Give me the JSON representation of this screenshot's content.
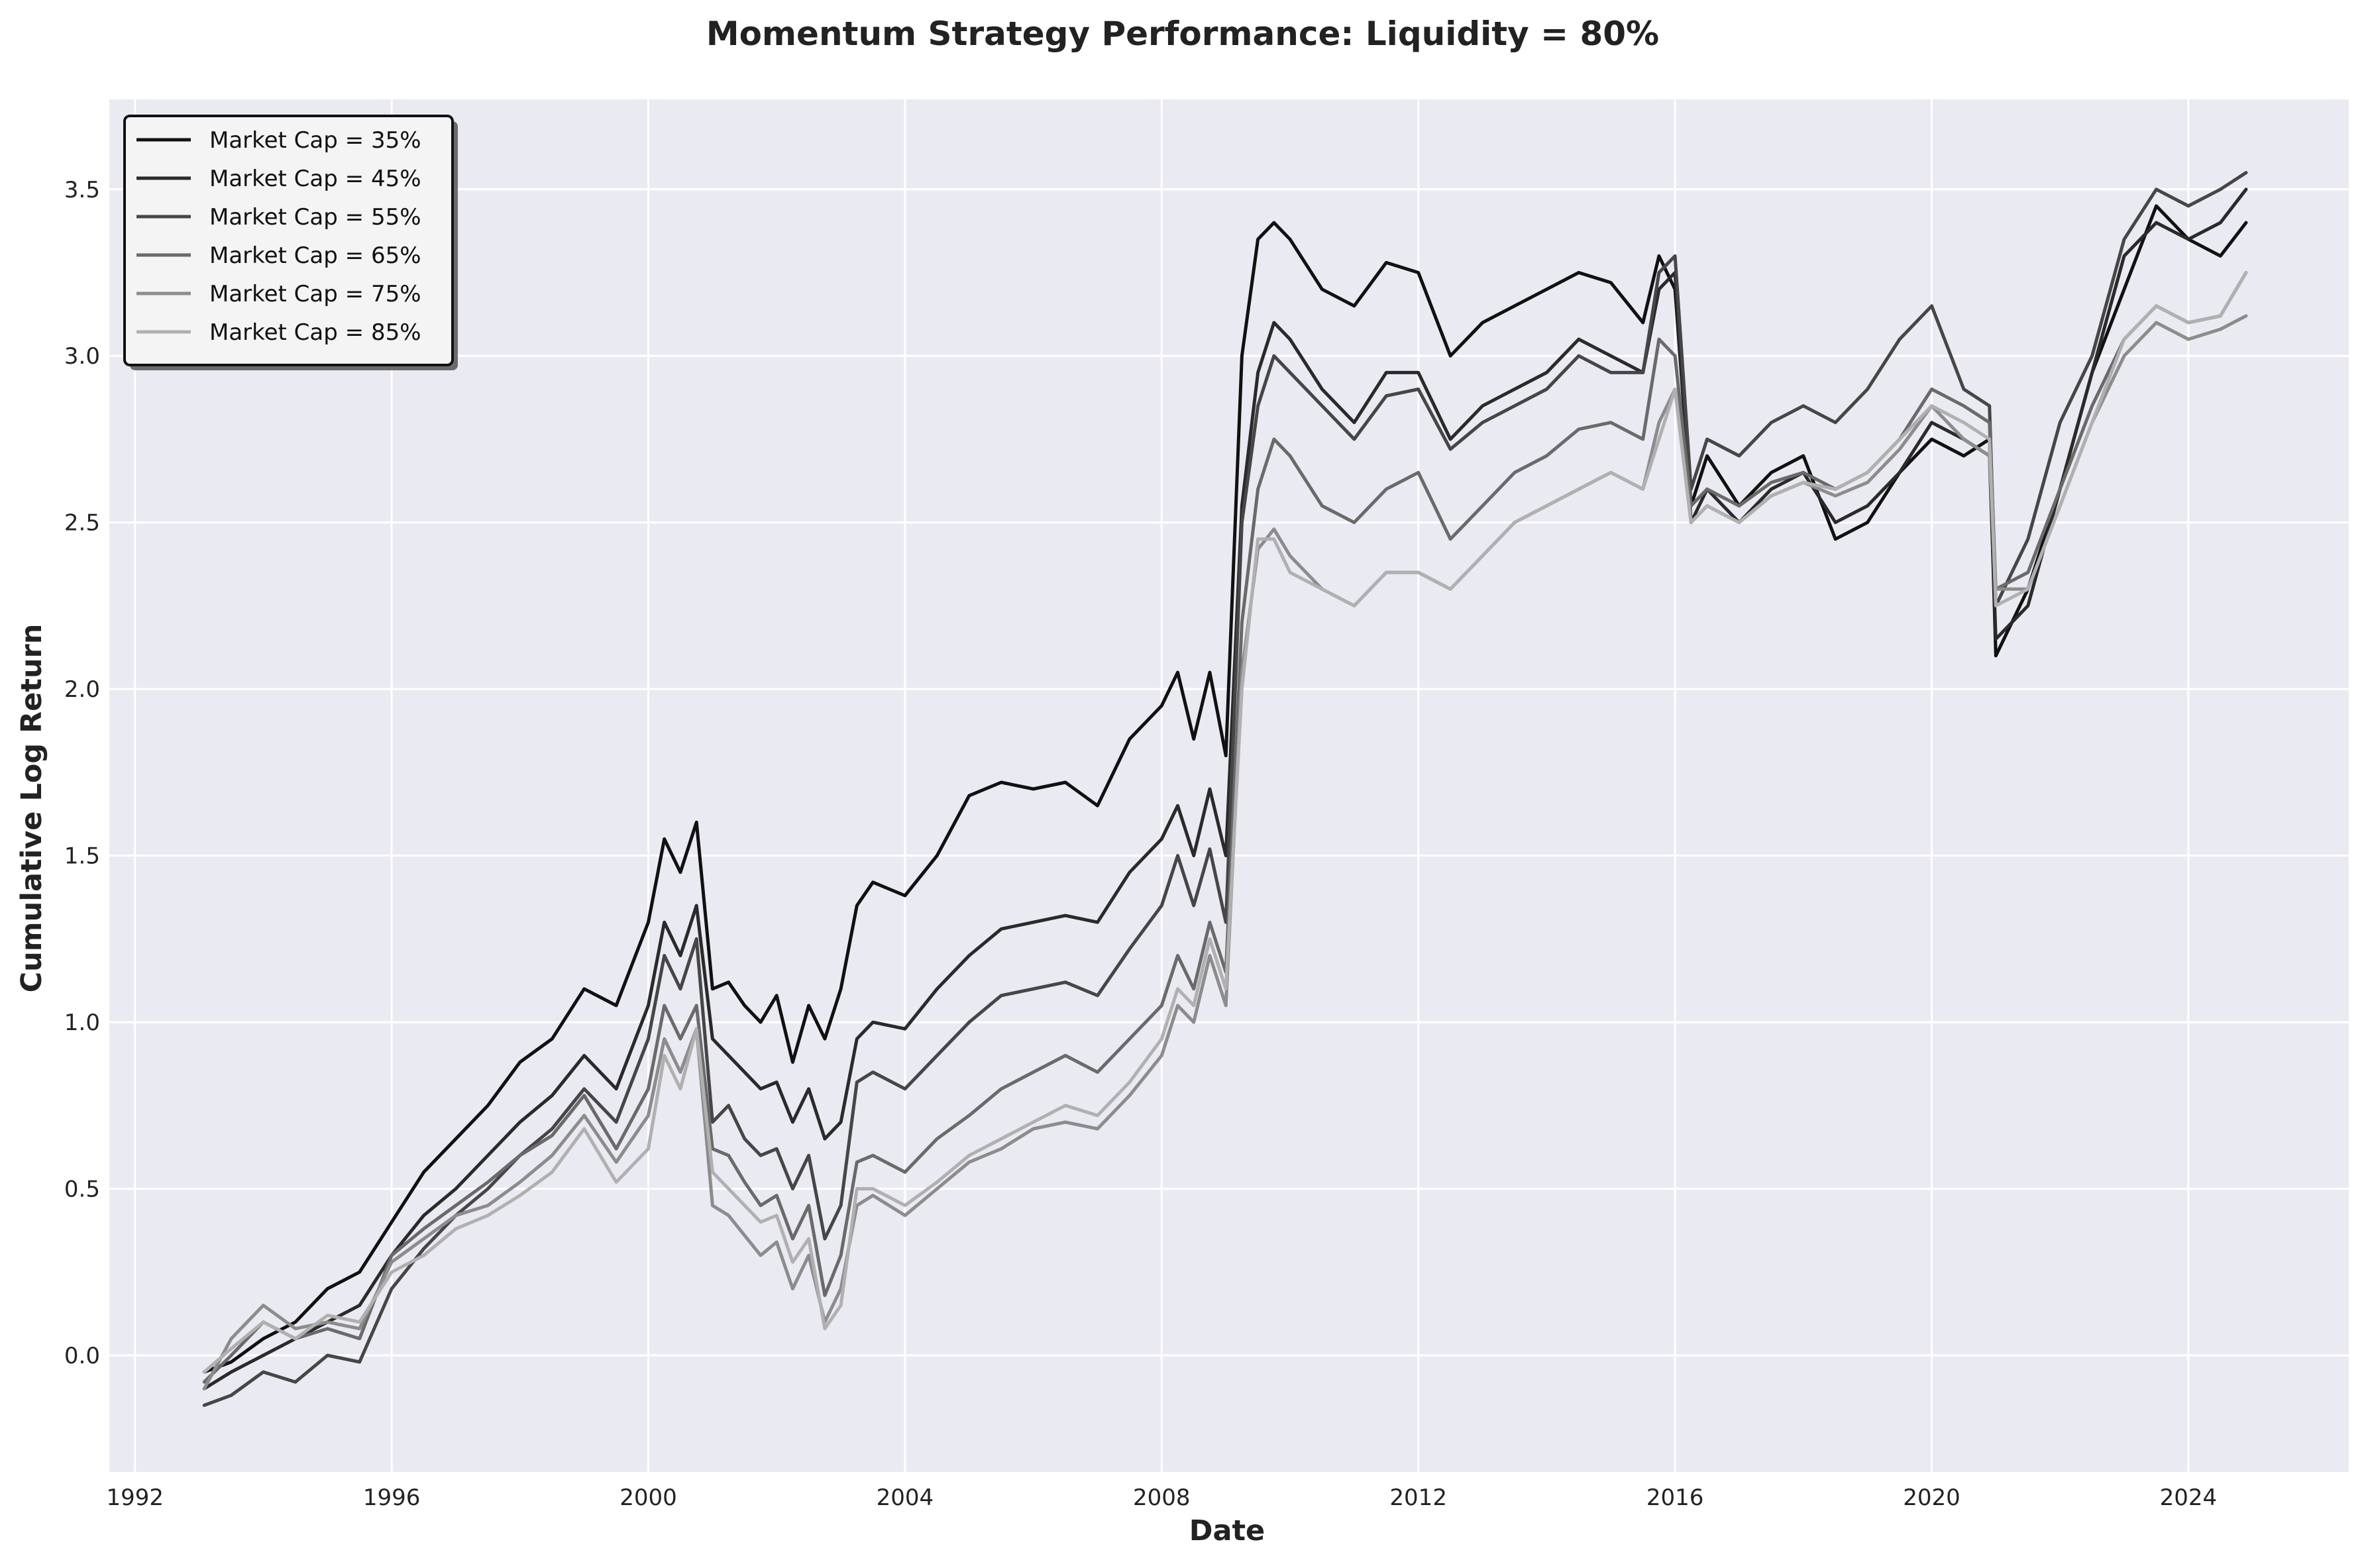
{
  "chart_data": {
    "type": "line",
    "title": "Momentum Strategy Performance: Liquidity = 80%",
    "xlabel": "Date",
    "ylabel": "Cumulative Log Return",
    "xlim": [
      1991.6,
      2026.5
    ],
    "ylim": [
      -0.35,
      3.77
    ],
    "x_ticks": [
      1992,
      1996,
      2000,
      2004,
      2008,
      2012,
      2016,
      2020,
      2024
    ],
    "y_ticks": [
      0.0,
      0.5,
      1.0,
      1.5,
      2.0,
      2.5,
      3.0,
      3.5
    ],
    "grid": true,
    "legend_position": "top-left",
    "background_color": "#eaeaf2",
    "series": [
      {
        "name": "Market Cap = 35%",
        "color": "#111111",
        "x": [
          1993.08,
          1993.5,
          1994.0,
          1994.5,
          1995.0,
          1995.5,
          1996.0,
          1996.5,
          1997.0,
          1997.5,
          1998.0,
          1998.5,
          1999.0,
          1999.5,
          2000.0,
          2000.25,
          2000.5,
          2000.75,
          2001.0,
          2001.25,
          2001.5,
          2001.75,
          2002.0,
          2002.25,
          2002.5,
          2002.75,
          2003.0,
          2003.25,
          2003.5,
          2004.0,
          2004.5,
          2005.0,
          2005.5,
          2006.0,
          2006.5,
          2007.0,
          2007.5,
          2008.0,
          2008.25,
          2008.5,
          2008.75,
          2009.0,
          2009.25,
          2009.5,
          2009.75,
          2010.0,
          2010.5,
          2011.0,
          2011.5,
          2012.0,
          2012.5,
          2013.0,
          2013.5,
          2014.0,
          2014.5,
          2015.0,
          2015.5,
          2015.75,
          2016.0,
          2016.25,
          2016.5,
          2017.0,
          2017.5,
          2018.0,
          2018.5,
          2019.0,
          2019.5,
          2020.0,
          2020.5,
          2020.9,
          2021.0,
          2021.5,
          2022.0,
          2022.5,
          2023.0,
          2023.5,
          2024.0,
          2024.5,
          2024.9
        ],
        "y": [
          -0.05,
          -0.02,
          0.05,
          0.1,
          0.2,
          0.25,
          0.4,
          0.55,
          0.65,
          0.75,
          0.88,
          0.95,
          1.1,
          1.05,
          1.3,
          1.55,
          1.45,
          1.6,
          1.1,
          1.12,
          1.05,
          1.0,
          1.08,
          0.88,
          1.05,
          0.95,
          1.1,
          1.35,
          1.42,
          1.38,
          1.5,
          1.68,
          1.72,
          1.7,
          1.72,
          1.65,
          1.85,
          1.95,
          2.05,
          1.85,
          2.05,
          1.8,
          3.0,
          3.35,
          3.4,
          3.35,
          3.2,
          3.15,
          3.28,
          3.25,
          3.0,
          3.1,
          3.15,
          3.2,
          3.25,
          3.22,
          3.1,
          3.3,
          3.2,
          2.55,
          2.7,
          2.55,
          2.65,
          2.7,
          2.45,
          2.5,
          2.65,
          2.75,
          2.7,
          2.75,
          2.1,
          2.3,
          2.6,
          2.95,
          3.2,
          3.45,
          3.35,
          3.3,
          3.4
        ]
      },
      {
        "name": "Market Cap = 45%",
        "color": "#2a2a2a",
        "x": [
          1993.08,
          1993.5,
          1994.0,
          1994.5,
          1995.0,
          1995.5,
          1996.0,
          1996.5,
          1997.0,
          1997.5,
          1998.0,
          1998.5,
          1999.0,
          1999.5,
          2000.0,
          2000.25,
          2000.5,
          2000.75,
          2001.0,
          2001.25,
          2001.5,
          2001.75,
          2002.0,
          2002.25,
          2002.5,
          2002.75,
          2003.0,
          2003.25,
          2003.5,
          2004.0,
          2004.5,
          2005.0,
          2005.5,
          2006.0,
          2006.5,
          2007.0,
          2007.5,
          2008.0,
          2008.25,
          2008.5,
          2008.75,
          2009.0,
          2009.25,
          2009.5,
          2009.75,
          2010.0,
          2010.5,
          2011.0,
          2011.5,
          2012.0,
          2012.5,
          2013.0,
          2013.5,
          2014.0,
          2014.5,
          2015.0,
          2015.5,
          2015.75,
          2016.0,
          2016.25,
          2016.5,
          2017.0,
          2017.5,
          2018.0,
          2018.5,
          2019.0,
          2019.5,
          2020.0,
          2020.5,
          2020.9,
          2021.0,
          2021.5,
          2022.0,
          2022.5,
          2023.0,
          2023.5,
          2024.0,
          2024.5,
          2024.9
        ],
        "y": [
          -0.1,
          -0.05,
          0.0,
          0.05,
          0.1,
          0.15,
          0.3,
          0.42,
          0.5,
          0.6,
          0.7,
          0.78,
          0.9,
          0.8,
          1.05,
          1.3,
          1.2,
          1.35,
          0.95,
          0.9,
          0.85,
          0.8,
          0.82,
          0.7,
          0.8,
          0.65,
          0.7,
          0.95,
          1.0,
          0.98,
          1.1,
          1.2,
          1.28,
          1.3,
          1.32,
          1.3,
          1.45,
          1.55,
          1.65,
          1.5,
          1.7,
          1.5,
          2.55,
          2.95,
          3.1,
          3.05,
          2.9,
          2.8,
          2.95,
          2.95,
          2.75,
          2.85,
          2.9,
          2.95,
          3.05,
          3.0,
          2.95,
          3.2,
          3.25,
          2.5,
          2.6,
          2.5,
          2.6,
          2.65,
          2.5,
          2.55,
          2.65,
          2.8,
          2.75,
          2.7,
          2.15,
          2.25,
          2.6,
          2.95,
          3.3,
          3.4,
          3.35,
          3.4,
          3.5
        ]
      },
      {
        "name": "Market Cap = 55%",
        "color": "#464646",
        "x": [
          1993.08,
          1993.5,
          1994.0,
          1994.5,
          1995.0,
          1995.5,
          1996.0,
          1996.5,
          1997.0,
          1997.5,
          1998.0,
          1998.5,
          1999.0,
          1999.5,
          2000.0,
          2000.25,
          2000.5,
          2000.75,
          2001.0,
          2001.25,
          2001.5,
          2001.75,
          2002.0,
          2002.25,
          2002.5,
          2002.75,
          2003.0,
          2003.25,
          2003.5,
          2004.0,
          2004.5,
          2005.0,
          2005.5,
          2006.0,
          2006.5,
          2007.0,
          2007.5,
          2008.0,
          2008.25,
          2008.5,
          2008.75,
          2009.0,
          2009.25,
          2009.5,
          2009.75,
          2010.0,
          2010.5,
          2011.0,
          2011.5,
          2012.0,
          2012.5,
          2013.0,
          2013.5,
          2014.0,
          2014.5,
          2015.0,
          2015.5,
          2015.75,
          2016.0,
          2016.25,
          2016.5,
          2017.0,
          2017.5,
          2018.0,
          2018.5,
          2019.0,
          2019.5,
          2020.0,
          2020.5,
          2020.9,
          2021.0,
          2021.5,
          2022.0,
          2022.5,
          2023.0,
          2023.5,
          2024.0,
          2024.5,
          2024.9
        ],
        "y": [
          -0.15,
          -0.12,
          -0.05,
          -0.08,
          0.0,
          -0.02,
          0.2,
          0.32,
          0.42,
          0.5,
          0.6,
          0.68,
          0.8,
          0.7,
          0.95,
          1.2,
          1.1,
          1.25,
          0.7,
          0.75,
          0.65,
          0.6,
          0.62,
          0.5,
          0.6,
          0.35,
          0.45,
          0.82,
          0.85,
          0.8,
          0.9,
          1.0,
          1.08,
          1.1,
          1.12,
          1.08,
          1.22,
          1.35,
          1.5,
          1.35,
          1.52,
          1.3,
          2.5,
          2.85,
          3.0,
          2.95,
          2.85,
          2.75,
          2.88,
          2.9,
          2.72,
          2.8,
          2.85,
          2.9,
          3.0,
          2.95,
          2.95,
          3.25,
          3.3,
          2.6,
          2.75,
          2.7,
          2.8,
          2.85,
          2.8,
          2.9,
          3.05,
          3.15,
          2.9,
          2.85,
          2.25,
          2.45,
          2.8,
          3.0,
          3.35,
          3.5,
          3.45,
          3.5,
          3.55
        ]
      },
      {
        "name": "Market Cap = 65%",
        "color": "#6a6a6a",
        "x": [
          1993.08,
          1993.5,
          1994.0,
          1994.5,
          1995.0,
          1995.5,
          1996.0,
          1996.5,
          1997.0,
          1997.5,
          1998.0,
          1998.5,
          1999.0,
          1999.5,
          2000.0,
          2000.25,
          2000.5,
          2000.75,
          2001.0,
          2001.25,
          2001.5,
          2001.75,
          2002.0,
          2002.25,
          2002.5,
          2002.75,
          2003.0,
          2003.25,
          2003.5,
          2004.0,
          2004.5,
          2005.0,
          2005.5,
          2006.0,
          2006.5,
          2007.0,
          2007.5,
          2008.0,
          2008.25,
          2008.5,
          2008.75,
          2009.0,
          2009.25,
          2009.5,
          2009.75,
          2010.0,
          2010.5,
          2011.0,
          2011.5,
          2012.0,
          2012.5,
          2013.0,
          2013.5,
          2014.0,
          2014.5,
          2015.0,
          2015.5,
          2015.75,
          2016.0,
          2016.25,
          2016.5,
          2017.0,
          2017.5,
          2018.0,
          2018.5,
          2019.0,
          2019.5,
          2020.0,
          2020.5,
          2020.9,
          2021.0,
          2021.5,
          2022.0,
          2022.5,
          2023.0,
          2023.5,
          2024.0,
          2024.5,
          2024.9
        ],
        "y": [
          -0.08,
          0.0,
          0.1,
          0.05,
          0.08,
          0.05,
          0.3,
          0.38,
          0.45,
          0.52,
          0.6,
          0.66,
          0.78,
          0.62,
          0.8,
          1.05,
          0.95,
          1.05,
          0.62,
          0.6,
          0.52,
          0.45,
          0.48,
          0.35,
          0.45,
          0.18,
          0.3,
          0.58,
          0.6,
          0.55,
          0.65,
          0.72,
          0.8,
          0.85,
          0.9,
          0.85,
          0.95,
          1.05,
          1.2,
          1.1,
          1.3,
          1.15,
          2.2,
          2.6,
          2.75,
          2.7,
          2.55,
          2.5,
          2.6,
          2.65,
          2.45,
          2.55,
          2.65,
          2.7,
          2.78,
          2.8,
          2.75,
          3.05,
          3.0,
          2.55,
          2.6,
          2.55,
          2.62,
          2.65,
          2.6,
          2.65,
          2.75,
          2.9,
          2.85,
          2.8,
          2.3,
          2.35,
          2.6,
          2.85,
          3.05,
          3.15,
          3.1,
          3.12,
          3.25
        ]
      },
      {
        "name": "Market Cap = 75%",
        "color": "#8c8c8c",
        "x": [
          1993.08,
          1993.5,
          1994.0,
          1994.5,
          1995.0,
          1995.5,
          1996.0,
          1996.5,
          1997.0,
          1997.5,
          1998.0,
          1998.5,
          1999.0,
          1999.5,
          2000.0,
          2000.25,
          2000.5,
          2000.75,
          2001.0,
          2001.25,
          2001.5,
          2001.75,
          2002.0,
          2002.25,
          2002.5,
          2002.75,
          2003.0,
          2003.25,
          2003.5,
          2004.0,
          2004.5,
          2005.0,
          2005.5,
          2006.0,
          2006.5,
          2007.0,
          2007.5,
          2008.0,
          2008.25,
          2008.5,
          2008.75,
          2009.0,
          2009.25,
          2009.5,
          2009.75,
          2010.0,
          2010.5,
          2011.0,
          2011.5,
          2012.0,
          2012.5,
          2013.0,
          2013.5,
          2014.0,
          2014.5,
          2015.0,
          2015.5,
          2015.75,
          2016.0,
          2016.25,
          2016.5,
          2017.0,
          2017.5,
          2018.0,
          2018.5,
          2019.0,
          2019.5,
          2020.0,
          2020.5,
          2020.9,
          2021.0,
          2021.5,
          2022.0,
          2022.5,
          2023.0,
          2023.5,
          2024.0,
          2024.5,
          2024.9
        ],
        "y": [
          -0.1,
          0.05,
          0.15,
          0.08,
          0.1,
          0.08,
          0.28,
          0.35,
          0.42,
          0.45,
          0.52,
          0.6,
          0.72,
          0.58,
          0.72,
          0.95,
          0.85,
          0.98,
          0.45,
          0.42,
          0.36,
          0.3,
          0.34,
          0.2,
          0.3,
          0.1,
          0.2,
          0.45,
          0.48,
          0.42,
          0.5,
          0.58,
          0.62,
          0.68,
          0.7,
          0.68,
          0.78,
          0.9,
          1.05,
          1.0,
          1.2,
          1.05,
          2.05,
          2.42,
          2.48,
          2.4,
          2.3,
          2.25,
          2.35,
          2.35,
          2.3,
          2.4,
          2.5,
          2.55,
          2.6,
          2.65,
          2.6,
          2.8,
          2.9,
          2.5,
          2.55,
          2.5,
          2.58,
          2.62,
          2.58,
          2.62,
          2.72,
          2.85,
          2.75,
          2.7,
          2.3,
          2.3,
          2.55,
          2.8,
          3.0,
          3.1,
          3.05,
          3.08,
          3.12
        ]
      },
      {
        "name": "Market Cap = 85%",
        "color": "#b0b0b0",
        "x": [
          1993.08,
          1993.5,
          1994.0,
          1994.5,
          1995.0,
          1995.5,
          1996.0,
          1996.5,
          1997.0,
          1997.5,
          1998.0,
          1998.5,
          1999.0,
          1999.5,
          2000.0,
          2000.25,
          2000.5,
          2000.75,
          2001.0,
          2001.25,
          2001.5,
          2001.75,
          2002.0,
          2002.25,
          2002.5,
          2002.75,
          2003.0,
          2003.25,
          2003.5,
          2004.0,
          2004.5,
          2005.0,
          2005.5,
          2006.0,
          2006.5,
          2007.0,
          2007.5,
          2008.0,
          2008.25,
          2008.5,
          2008.75,
          2009.0,
          2009.25,
          2009.5,
          2009.75,
          2010.0,
          2010.5,
          2011.0,
          2011.5,
          2012.0,
          2012.5,
          2013.0,
          2013.5,
          2014.0,
          2014.5,
          2015.0,
          2015.5,
          2015.75,
          2016.0,
          2016.25,
          2016.5,
          2017.0,
          2017.5,
          2018.0,
          2018.5,
          2019.0,
          2019.5,
          2020.0,
          2020.5,
          2020.9,
          2021.0,
          2021.5,
          2022.0,
          2022.5,
          2023.0,
          2023.5,
          2024.0,
          2024.5,
          2024.9
        ],
        "y": [
          -0.05,
          0.02,
          0.1,
          0.05,
          0.12,
          0.1,
          0.25,
          0.3,
          0.38,
          0.42,
          0.48,
          0.55,
          0.68,
          0.52,
          0.62,
          0.9,
          0.8,
          0.98,
          0.55,
          0.5,
          0.45,
          0.4,
          0.42,
          0.28,
          0.35,
          0.08,
          0.15,
          0.5,
          0.5,
          0.45,
          0.52,
          0.6,
          0.65,
          0.7,
          0.75,
          0.72,
          0.82,
          0.95,
          1.1,
          1.05,
          1.25,
          1.1,
          2.0,
          2.45,
          2.45,
          2.35,
          2.3,
          2.25,
          2.35,
          2.35,
          2.3,
          2.4,
          2.5,
          2.55,
          2.6,
          2.65,
          2.6,
          2.75,
          2.9,
          2.5,
          2.55,
          2.5,
          2.58,
          2.62,
          2.6,
          2.65,
          2.75,
          2.85,
          2.8,
          2.75,
          2.25,
          2.3,
          2.55,
          2.8,
          3.05,
          3.15,
          3.1,
          3.12,
          3.25
        ]
      }
    ]
  }
}
